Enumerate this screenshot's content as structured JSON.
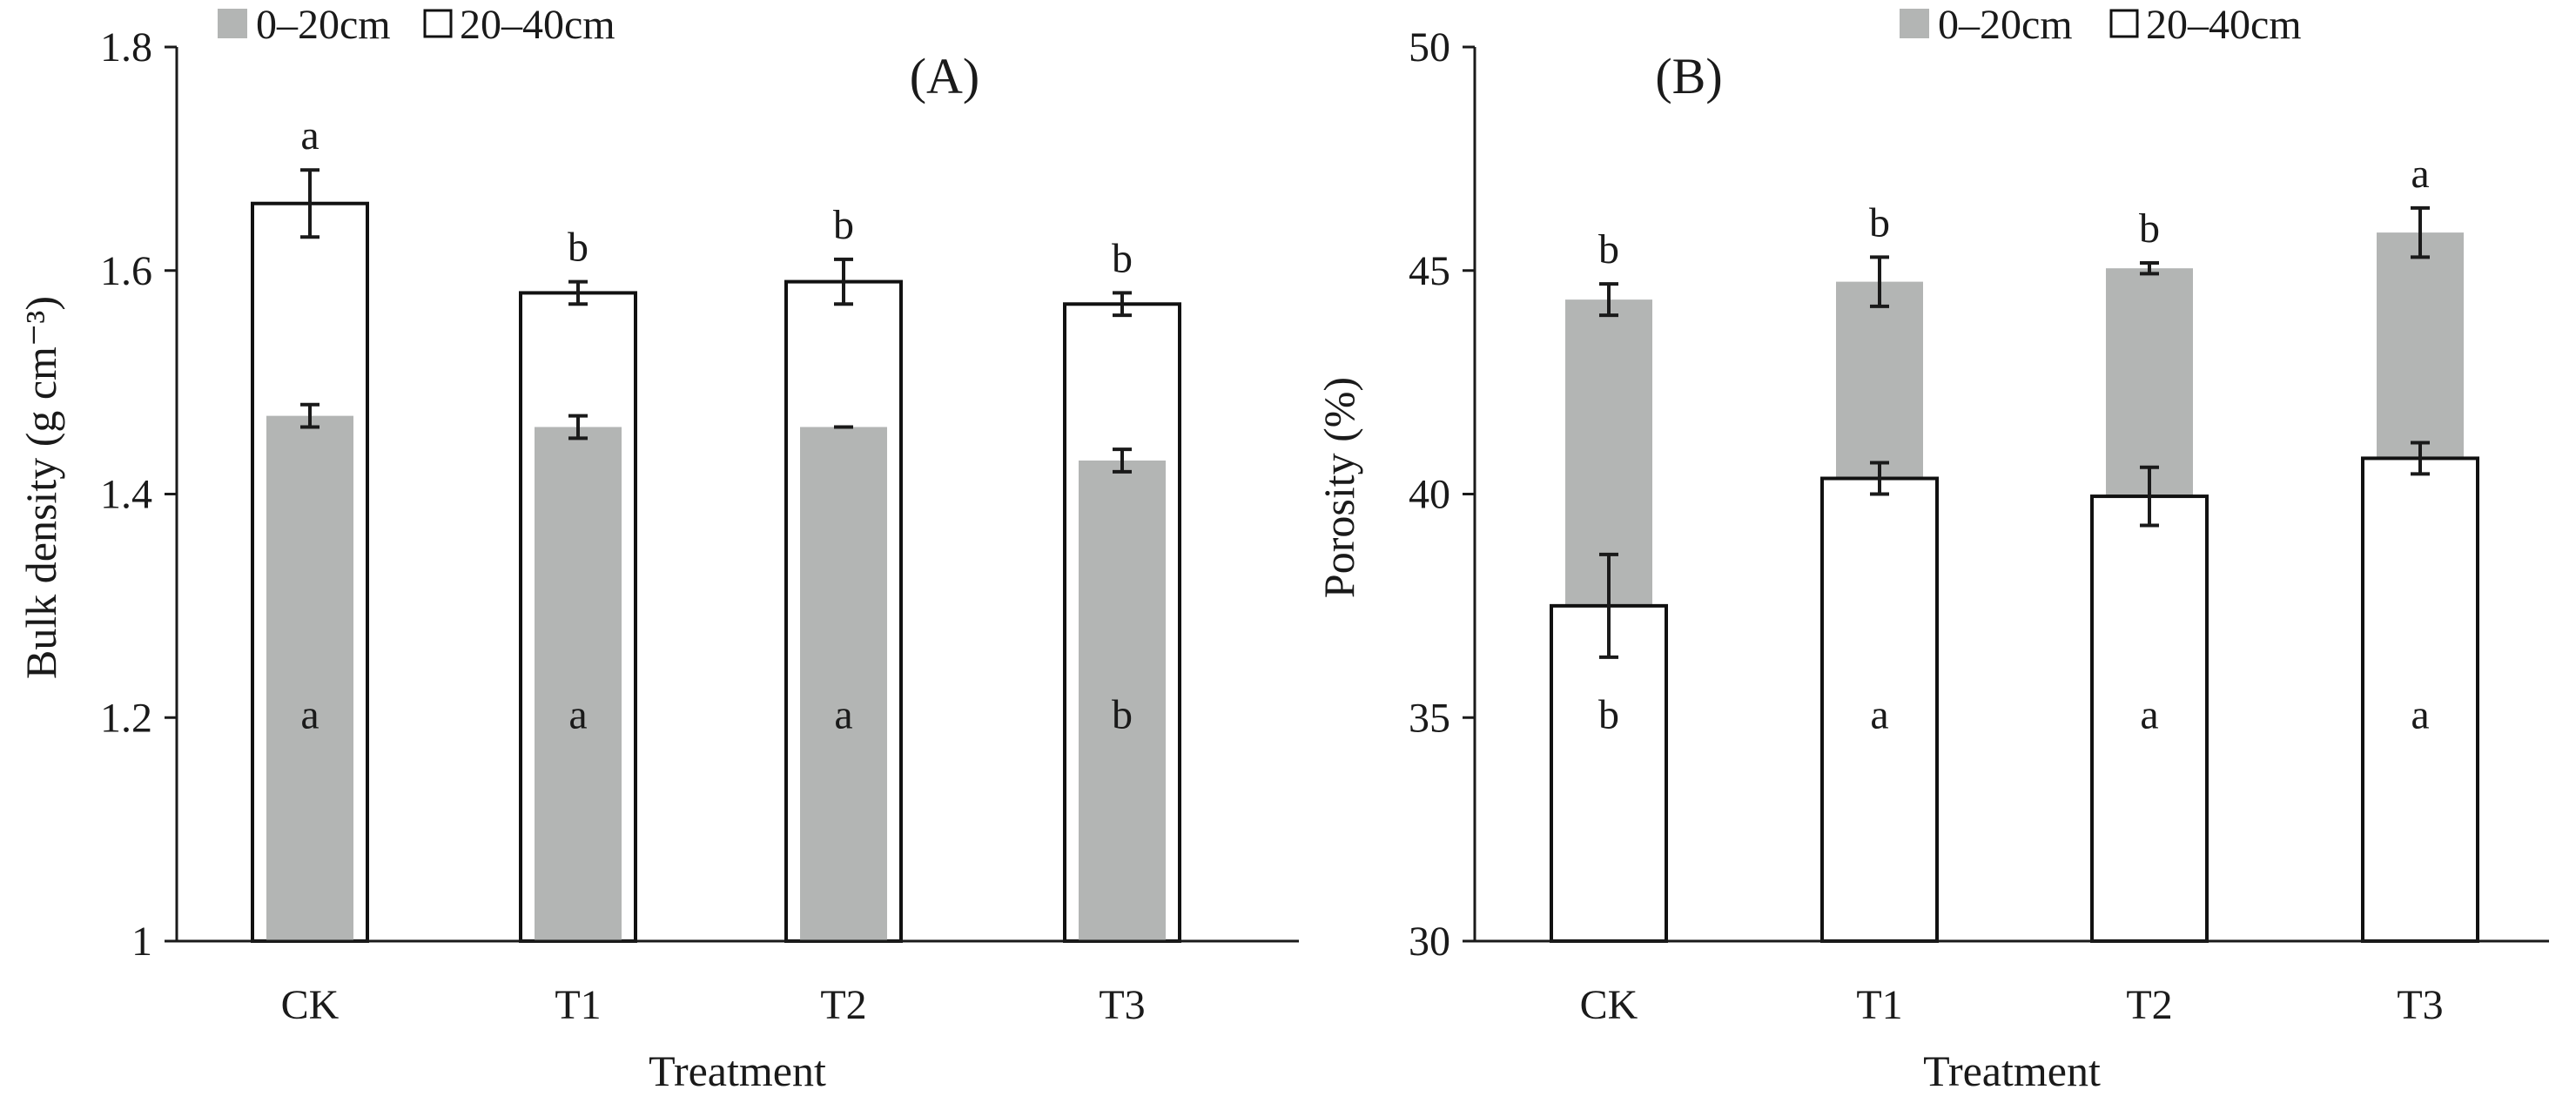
{
  "chart_data": [
    {
      "id": "A",
      "type": "bar",
      "panel_label": "(A)",
      "xlabel": "Treatment",
      "ylabel": "Bulk density (g cm⁻³)",
      "ylim": [
        1.0,
        1.8
      ],
      "yticks": [
        1.0,
        1.2,
        1.4,
        1.6,
        1.8
      ],
      "ytick_labels": [
        "1",
        "1.2",
        "1.4",
        "1.6",
        "1.8"
      ],
      "categories": [
        "CK",
        "T1",
        "T2",
        "T3"
      ],
      "legend_position": "top-left",
      "series": [
        {
          "name": "0–20cm",
          "style": "filled",
          "values": [
            1.47,
            1.46,
            1.46,
            1.43
          ],
          "errors": [
            0.01,
            0.01,
            0.0,
            0.01
          ],
          "significance": [
            "a",
            "a",
            "a",
            "b"
          ],
          "sig_placement": "inside"
        },
        {
          "name": "20–40cm",
          "style": "outline",
          "values": [
            1.66,
            1.58,
            1.59,
            1.57
          ],
          "errors": [
            0.03,
            0.01,
            0.02,
            0.01
          ],
          "significance": [
            "a",
            "b",
            "b",
            "b"
          ],
          "sig_placement": "above"
        }
      ]
    },
    {
      "id": "B",
      "type": "bar",
      "panel_label": "(B)",
      "xlabel": "Treatment",
      "ylabel": "Porosity (%)",
      "ylim": [
        30,
        50
      ],
      "yticks": [
        30,
        35,
        40,
        45,
        50
      ],
      "ytick_labels": [
        "30",
        "35",
        "40",
        "45",
        "50"
      ],
      "categories": [
        "CK",
        "T1",
        "T2",
        "T3"
      ],
      "legend_position": "top-right",
      "series": [
        {
          "name": "0–20cm",
          "style": "filled",
          "values": [
            44.35,
            44.75,
            45.05,
            45.85
          ],
          "errors": [
            0.35,
            0.55,
            0.12,
            0.55
          ],
          "significance": [
            "b",
            "b",
            "b",
            "a"
          ],
          "sig_placement": "above"
        },
        {
          "name": "20–40cm",
          "style": "outline",
          "values": [
            37.5,
            40.35,
            39.95,
            40.8
          ],
          "errors": [
            1.15,
            0.35,
            0.65,
            0.35
          ],
          "significance": [
            "b",
            "a",
            "a",
            "a"
          ],
          "sig_placement": "inside"
        }
      ]
    }
  ],
  "colors": {
    "fill_0_20": "#b3b5b4",
    "outline": "#111111",
    "axis": "#1a1a1a"
  }
}
